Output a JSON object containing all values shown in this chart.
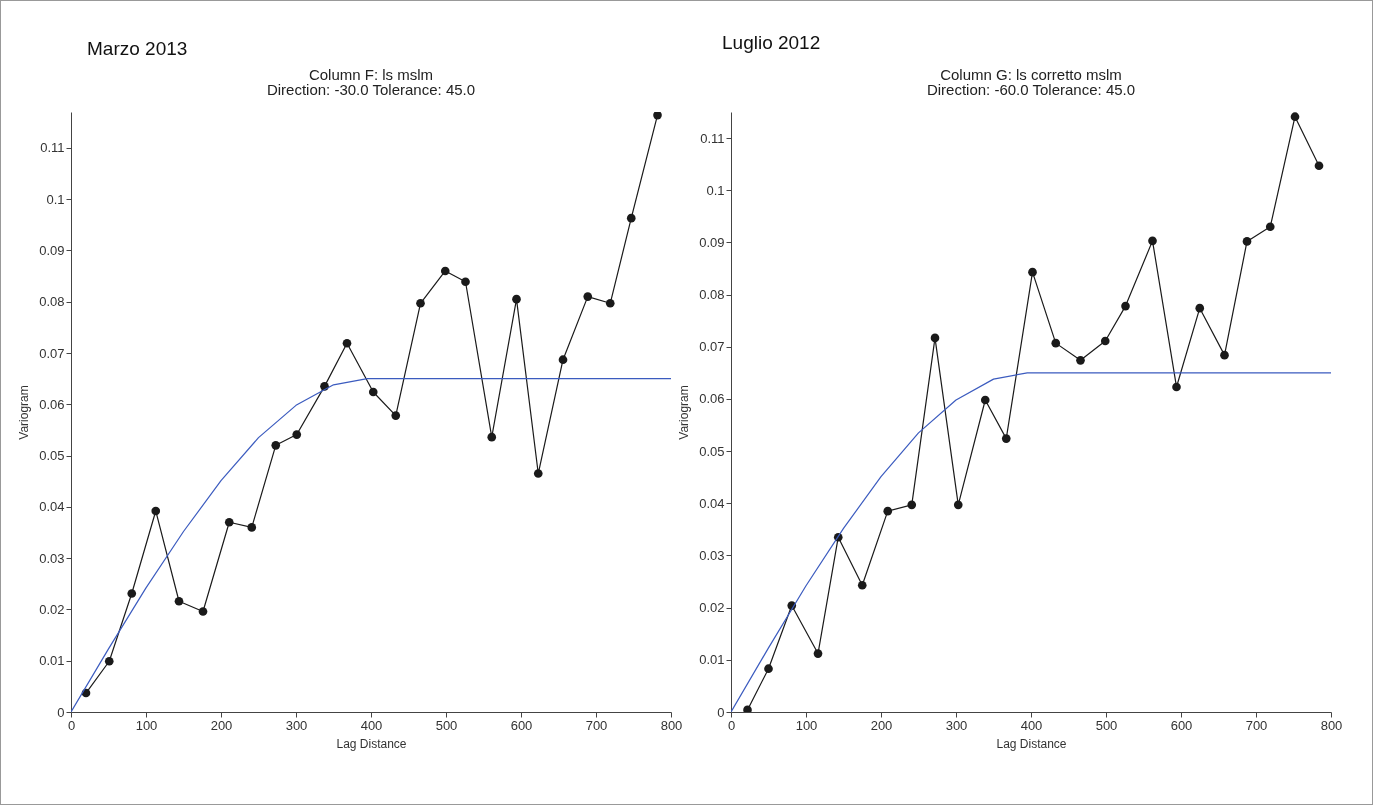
{
  "chart_data": [
    {
      "type": "line",
      "title": "Marzo 2013",
      "subtitle": "Column F:  ls mslm\nDirection: -30.0   Tolerance: 45.0",
      "xlabel": "Lag Distance",
      "ylabel": "Variogram",
      "xlim": [
        0,
        800
      ],
      "xticks": [
        0,
        100,
        200,
        300,
        400,
        500,
        600,
        700,
        800
      ],
      "ylim": [
        0,
        0.117
      ],
      "yticks": [
        0,
        0.01,
        0.02,
        0.03,
        0.04,
        0.05,
        0.06,
        0.07,
        0.08,
        0.09,
        0.1,
        0.11
      ],
      "grid": false,
      "series": [
        {
          "type": "line",
          "color": "#1a1a1a",
          "marker": "circle",
          "x": [
            20,
            51,
            81,
            113,
            144,
            176,
            211,
            241,
            273,
            301,
            338,
            368,
            403,
            433,
            466,
            499,
            526,
            561,
            594,
            623,
            656,
            689,
            719,
            747,
            782
          ],
          "values": [
            0.0037,
            0.0099,
            0.0231,
            0.0392,
            0.0216,
            0.0196,
            0.037,
            0.036,
            0.052,
            0.0541,
            0.0635,
            0.0719,
            0.0624,
            0.0578,
            0.0797,
            0.086,
            0.0839,
            0.0536,
            0.0805,
            0.0465,
            0.0687,
            0.081,
            0.0797,
            0.0963,
            0.1164
          ]
        },
        {
          "type": "line",
          "color": "#3b5bbf",
          "marker": "none",
          "x": [
            0,
            50,
            100,
            150,
            200,
            250,
            300,
            350,
            395,
            800
          ],
          "values": [
            0,
            0.0123,
            0.0242,
            0.0352,
            0.0451,
            0.0535,
            0.0598,
            0.0638,
            0.065,
            0.065
          ]
        }
      ]
    },
    {
      "type": "line",
      "title": "Luglio 2012",
      "subtitle": "Column G:  ls corretto mslm\nDirection: -60.0   Tolerance: 45.0",
      "xlabel": "Lag Distance",
      "ylabel": "Variogram",
      "xlim": [
        0,
        800
      ],
      "xticks": [
        0,
        100,
        200,
        300,
        400,
        500,
        600,
        700,
        800
      ],
      "ylim": [
        0,
        0.115
      ],
      "yticks": [
        0,
        0.01,
        0.02,
        0.03,
        0.04,
        0.05,
        0.06,
        0.07,
        0.08,
        0.09,
        0.1,
        0.11
      ],
      "grid": false,
      "series": [
        {
          "type": "line",
          "color": "#1a1a1a",
          "marker": "circle",
          "x": [
            22,
            50,
            81,
            116,
            143,
            175,
            209,
            241,
            272,
            303,
            339,
            367,
            402,
            433,
            466,
            499,
            526,
            562,
            594,
            625,
            658,
            688,
            719,
            752,
            784
          ],
          "values": [
            0.0004,
            0.0083,
            0.0204,
            0.0112,
            0.0335,
            0.0243,
            0.0385,
            0.0397,
            0.0717,
            0.0397,
            0.0598,
            0.0524,
            0.0843,
            0.0707,
            0.0674,
            0.0711,
            0.0778,
            0.0903,
            0.0623,
            0.0774,
            0.0684,
            0.0902,
            0.093,
            0.1141,
            0.1047
          ]
        },
        {
          "type": "line",
          "color": "#3b5bbf",
          "marker": "none",
          "x": [
            0,
            50,
            100,
            150,
            200,
            250,
            300,
            350,
            395,
            800
          ],
          "values": [
            0,
            0.0123,
            0.0242,
            0.0352,
            0.0451,
            0.0535,
            0.0598,
            0.0638,
            0.065,
            0.065
          ]
        }
      ]
    }
  ]
}
